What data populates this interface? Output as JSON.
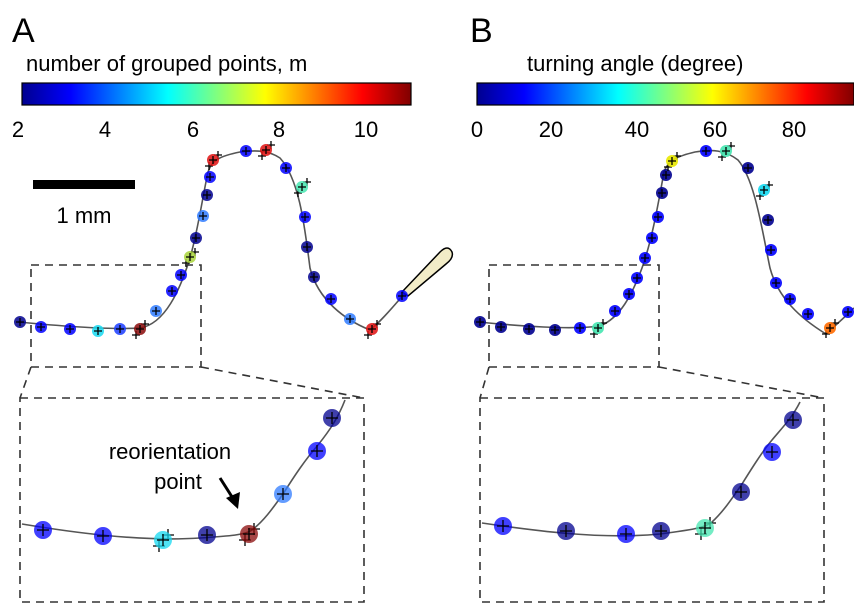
{
  "panels": [
    {
      "letter": "A",
      "colorbar_title": "number of grouped points, m",
      "ticks": [
        "2",
        "4",
        "6",
        "8",
        "10"
      ],
      "scale_bar_label": "1 mm",
      "annotation": [
        "reorientation",
        "point"
      ]
    },
    {
      "letter": "B",
      "colorbar_title": "turning angle (degree)",
      "ticks": [
        "0",
        "20",
        "40",
        "60",
        "80"
      ]
    }
  ],
  "colormap": "jet",
  "colors": {
    "trail": "#555555",
    "inset_border": "#333333"
  }
}
